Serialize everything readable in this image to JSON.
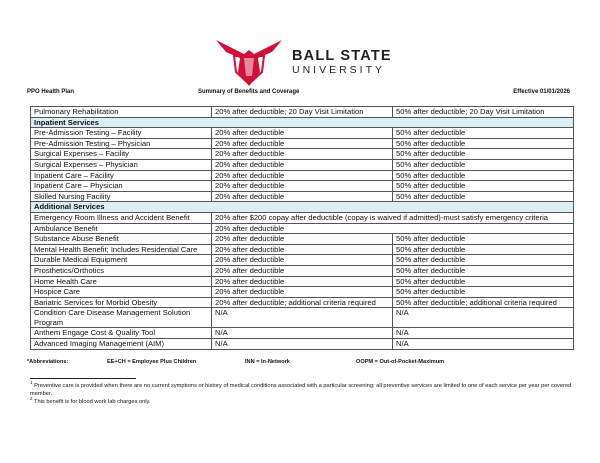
{
  "logo": {
    "line1": "BALL STATE",
    "line2": "UNIVERSITY",
    "icon": "cardinal-shield-logo",
    "color": "#d0103a"
  },
  "header": {
    "left": "PPO Health Plan",
    "center": "Summary of Benefits and Coverage",
    "right": "Effective 01/01/2026"
  },
  "table": {
    "section_bg": "#daeef3",
    "rows": [
      {
        "type": "row",
        "cells": [
          "Pulmonary Rehabilitation",
          "20% after deductible; 20 Day Visit Limitation",
          "50% after deductible; 20 Day Visit Limitation"
        ]
      },
      {
        "type": "section",
        "cells": [
          "Inpatient Services"
        ]
      },
      {
        "type": "row",
        "cells": [
          "Pre-Admission Testing – Facility",
          "20% after deductible",
          "50% after deductible"
        ]
      },
      {
        "type": "row",
        "cells": [
          "Pre-Admission Testing – Physician",
          "20% after deductible",
          "50% after deductible"
        ]
      },
      {
        "type": "row",
        "cells": [
          "Surgical Expenses – Facility",
          "20% after deductible",
          "50% after deductible"
        ]
      },
      {
        "type": "row",
        "cells": [
          "Surgical Expenses – Physician",
          "20% after deductible",
          "50% after deductible"
        ]
      },
      {
        "type": "row",
        "cells": [
          "Inpatient Care – Facility",
          "20% after deductible",
          "50% after deductible"
        ]
      },
      {
        "type": "row",
        "cells": [
          "Inpatient Care – Physician",
          "20% after deductible",
          "50% after deductible"
        ]
      },
      {
        "type": "row",
        "cells": [
          "Skilled Nursing Facility",
          "20% after deductible",
          "50% after deductible"
        ]
      },
      {
        "type": "section",
        "cells": [
          "Additional Services"
        ]
      },
      {
        "type": "merged",
        "cells": [
          "Emergency Room Illness and Accident Benefit",
          "20% after $200 copay after deductible (copay is waived if admitted)-must satisfy emergency criteria"
        ]
      },
      {
        "type": "merged",
        "cells": [
          "Ambulance Benefit",
          "20% after deductible"
        ]
      },
      {
        "type": "row",
        "cells": [
          "Substance Abuse Benefit",
          "20% after deductible",
          "50% after deductible"
        ]
      },
      {
        "type": "row",
        "cells": [
          "Mental Health Benefit; Includes Residential Care",
          "20% after deductible",
          "50% after deductible"
        ]
      },
      {
        "type": "row",
        "cells": [
          "Durable Medical Equipment",
          "20% after deductible",
          "50% after deductible"
        ]
      },
      {
        "type": "row",
        "cells": [
          "Prosthetics/Orthotics",
          "20% after deductible",
          "50% after deductible"
        ]
      },
      {
        "type": "row",
        "cells": [
          "Home Health Care",
          "20% after deductible",
          "50% after deductible"
        ]
      },
      {
        "type": "row",
        "cells": [
          "Hospice Care",
          "20% after deductible",
          "50% after deductible"
        ]
      },
      {
        "type": "row",
        "cells": [
          "Bariatric Services for Morbid Obesity",
          "20% after deductible; additional criteria required",
          "50% after deductible; additional criteria required"
        ]
      },
      {
        "type": "row",
        "cells": [
          "Condition Care Disease Management Solution Program",
          "N/A",
          "N/A"
        ]
      },
      {
        "type": "row",
        "cells": [
          "Anthem Engage Cost & Quality Tool",
          "N/A",
          "N/A"
        ]
      },
      {
        "type": "row",
        "cells": [
          "Advanced Imaging Management (AIM)",
          "N/A",
          "N/A"
        ]
      }
    ]
  },
  "abbreviations": {
    "label": "*Abbreviations:",
    "items": [
      "EE+CH = Employee Plus Children",
      "INN = In-Network",
      "OOPM = Out-of-Pocket-Maximum"
    ]
  },
  "footnotes": [
    {
      "mark": "1",
      "text": "Preventive care is provided when there are no current symptoms or history of medical conditions associated with a particular screening; all preventive services are limited to one of each service per year per covered member."
    },
    {
      "mark": "2",
      "text": "This benefit is for blood work lab charges only."
    }
  ]
}
